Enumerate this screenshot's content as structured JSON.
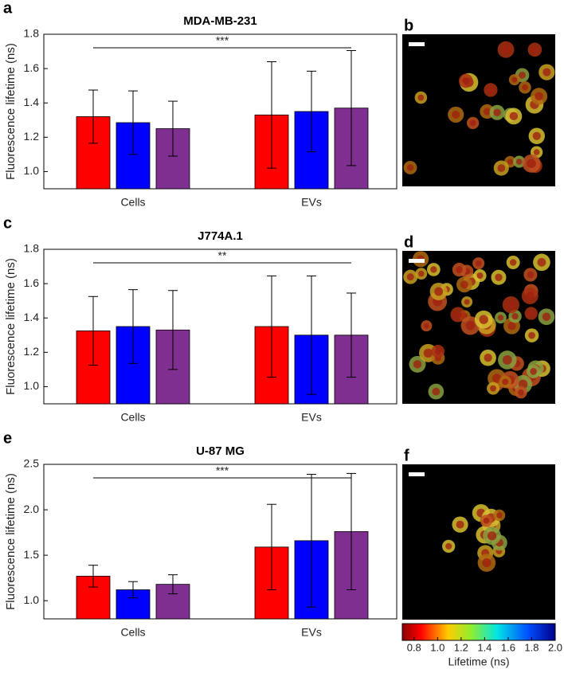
{
  "chart_data": [
    {
      "type": "bar",
      "panel": "a",
      "title": "MDA-MB-231",
      "ylabel": "Fluorescence lifetime (ns)",
      "annotation": "***",
      "categories": [
        "Cells",
        "EVs"
      ],
      "series": [
        {
          "color": "#ff0000",
          "values": [
            1.32,
            1.33
          ],
          "errors": [
            0.155,
            0.31
          ]
        },
        {
          "color": "#0000ff",
          "values": [
            1.285,
            1.35
          ],
          "errors": [
            0.185,
            0.235
          ]
        },
        {
          "color": "#7f2f8f",
          "values": [
            1.25,
            1.37
          ],
          "errors": [
            0.16,
            0.335
          ]
        }
      ],
      "ylim": [
        0.9,
        1.8
      ],
      "yticks": [
        {
          "value": 1,
          "label": "1.0"
        },
        1.2,
        1.4,
        1.6,
        1.8
      ]
    },
    {
      "type": "bar",
      "panel": "c",
      "title": "J774A.1",
      "ylabel": "Fluorescence lifetime (ns)",
      "annotation": "**",
      "categories": [
        "Cells",
        "EVs"
      ],
      "series": [
        {
          "color": "#ff0000",
          "values": [
            1.325,
            1.35
          ],
          "errors": [
            0.2,
            0.295
          ]
        },
        {
          "color": "#0000ff",
          "values": [
            1.35,
            1.3
          ],
          "errors": [
            0.215,
            0.345
          ]
        },
        {
          "color": "#7f2f8f",
          "values": [
            1.33,
            1.3
          ],
          "errors": [
            0.23,
            0.245
          ]
        }
      ],
      "ylim": [
        0.9,
        1.8
      ],
      "yticks": [
        {
          "value": 1,
          "label": "1.0"
        },
        1.2,
        1.4,
        1.6,
        1.8
      ]
    },
    {
      "type": "bar",
      "panel": "e",
      "title": "U-87 MG",
      "ylabel": "Fluorescence lifetime (ns)",
      "annotation": "***",
      "categories": [
        "Cells",
        "EVs"
      ],
      "series": [
        {
          "color": "#ff0000",
          "values": [
            1.27,
            1.59
          ],
          "errors": [
            0.12,
            0.47
          ]
        },
        {
          "color": "#0000ff",
          "values": [
            1.12,
            1.66
          ],
          "errors": [
            0.09,
            0.73
          ]
        },
        {
          "color": "#7f2f8f",
          "values": [
            1.18,
            1.76
          ],
          "errors": [
            0.105,
            0.64
          ]
        }
      ],
      "ylim": [
        0.8,
        2.5
      ],
      "yticks": [
        {
          "value": 1,
          "label": "1.0"
        },
        1.5,
        {
          "value": 2,
          "label": "2.0"
        },
        2.5
      ]
    }
  ],
  "images": [
    {
      "panel": "b"
    },
    {
      "panel": "d"
    },
    {
      "panel": "f"
    }
  ],
  "colorbar": {
    "label": "Lifetime (ns)",
    "lim": [
      0.7,
      2.0
    ],
    "ticks": [
      0.8,
      {
        "value": 1,
        "label": "1.0"
      },
      1.2,
      1.4,
      1.6,
      1.8,
      {
        "value": 2,
        "label": "2.0"
      }
    ]
  }
}
